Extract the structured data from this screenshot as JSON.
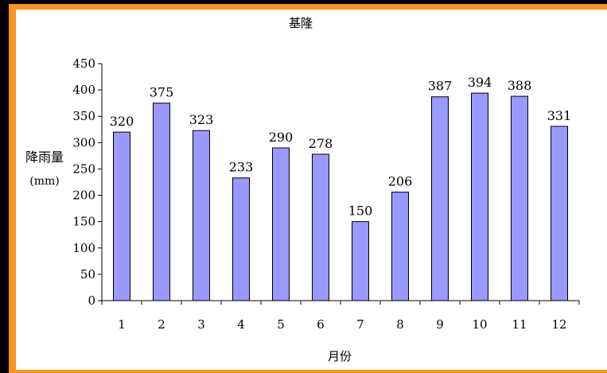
{
  "chart_data": {
    "type": "bar",
    "title": "基隆",
    "xlabel": "月份",
    "ylabel": "降雨量",
    "ylabel_unit": "(mm)",
    "categories": [
      "1",
      "2",
      "3",
      "4",
      "5",
      "6",
      "7",
      "8",
      "9",
      "10",
      "11",
      "12"
    ],
    "values": [
      320,
      375,
      323,
      233,
      290,
      278,
      150,
      206,
      387,
      394,
      388,
      331
    ],
    "ylim": [
      0,
      450
    ],
    "yticks": [
      0,
      50,
      100,
      150,
      200,
      250,
      300,
      350,
      400,
      450
    ],
    "grid": false,
    "legend": "none",
    "bar_color": "#9999ff",
    "bar_edge_color": "#000000",
    "frame_color": "#f7931e"
  }
}
